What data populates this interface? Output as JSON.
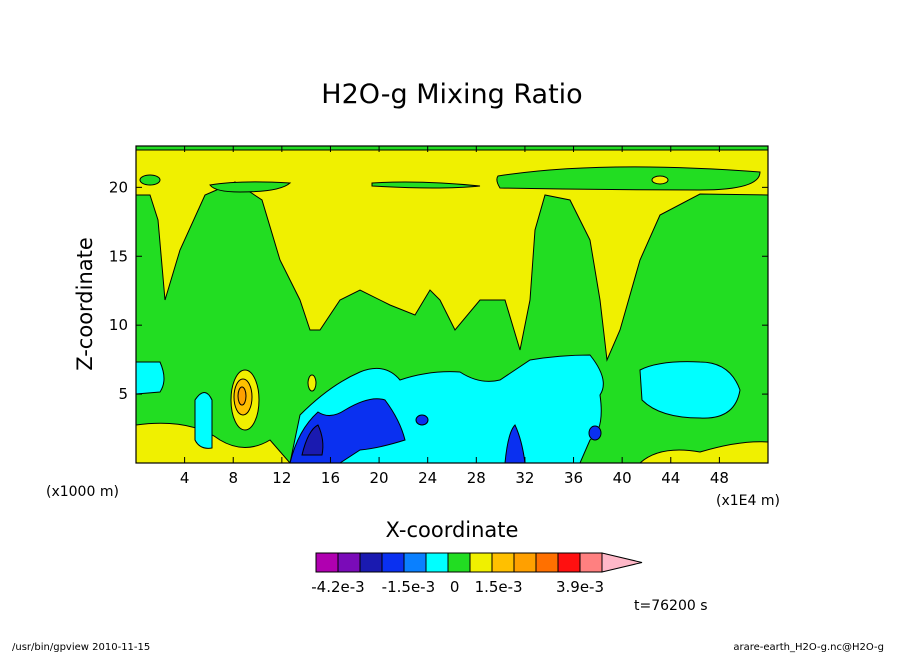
{
  "chart_data": {
    "type": "heatmap",
    "title": "H2O-g Mixing Ratio",
    "xlabel": "X-coordinate",
    "ylabel": "Z-coordinate",
    "x_unit_left": "(x1000 m)",
    "x_unit_right": "(x1E4 m)",
    "xlim": [
      0,
      52
    ],
    "ylim": [
      0,
      23
    ],
    "xticks": [
      4,
      8,
      12,
      16,
      20,
      24,
      28,
      32,
      36,
      40,
      44,
      48
    ],
    "yticks": [
      5,
      10,
      15,
      20
    ],
    "colorbar": {
      "colors": [
        "#b000b0",
        "#7a0bb8",
        "#1a1ab0",
        "#0a30f0",
        "#0a80ff",
        "#00ffff",
        "#22dd22",
        "#f0f000",
        "#ffc000",
        "#ffa000",
        "#ff7000",
        "#ff1010",
        "#ff8080",
        "#ffb8c8"
      ],
      "labels": [
        "-4.2e-3",
        "-1.5e-3",
        "0",
        "1.5e-3",
        "3.9e-3"
      ]
    },
    "time_label": "t=76200 s",
    "note": "Filled contour field; contour regions approximated"
  },
  "footer": {
    "left": "/usr/bin/gpview   2010-11-15",
    "right": "arare-earth_H2O-g.nc@H2O-g"
  }
}
